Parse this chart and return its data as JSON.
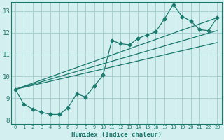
{
  "xlabel": "Humidex (Indice chaleur)",
  "bg_color": "#d4efef",
  "grid_color": "#a8d0d0",
  "line_color": "#1a7a6e",
  "xlim": [
    -0.5,
    23.5
  ],
  "ylim": [
    7.8,
    13.4
  ],
  "yticks": [
    8,
    9,
    10,
    11,
    12,
    13
  ],
  "xticks": [
    0,
    1,
    2,
    3,
    4,
    5,
    6,
    7,
    8,
    9,
    10,
    11,
    12,
    13,
    14,
    15,
    16,
    17,
    18,
    19,
    20,
    21,
    22,
    23
  ],
  "series1_x": [
    0,
    1,
    2,
    3,
    4,
    5,
    6,
    7,
    8,
    9,
    10,
    11,
    12,
    13,
    14,
    15,
    16,
    17,
    18,
    19,
    20,
    21,
    22,
    23
  ],
  "series1_y": [
    9.4,
    8.7,
    8.5,
    8.35,
    8.25,
    8.25,
    8.55,
    9.2,
    9.05,
    9.55,
    10.05,
    11.65,
    11.5,
    11.45,
    11.75,
    11.9,
    12.05,
    12.65,
    13.3,
    12.75,
    12.55,
    12.15,
    12.1,
    12.7
  ],
  "line1_x": [
    0,
    23
  ],
  "line1_y": [
    9.4,
    12.7
  ],
  "line2_x": [
    0,
    23
  ],
  "line2_y": [
    9.4,
    12.1
  ],
  "line3_x": [
    0,
    23
  ],
  "line3_y": [
    9.4,
    11.55
  ]
}
